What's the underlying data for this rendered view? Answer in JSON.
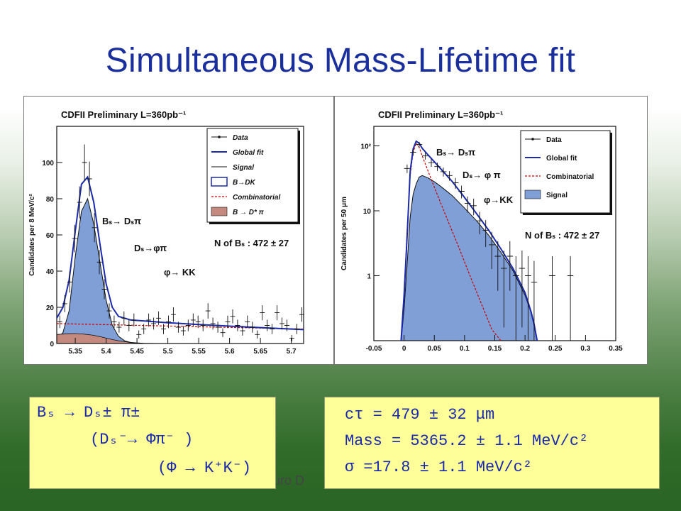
{
  "slide": {
    "title": "Simultaneous Mass-Lifetime fit",
    "footer_fragment": "auro D"
  },
  "chart_data": [
    {
      "type": "histogram",
      "title": "CDFII Preliminary L=360pb⁻¹",
      "xlabel": "",
      "ylabel": "Candidates per 8 MeV/c²",
      "xlim": [
        5.32,
        5.72
      ],
      "ylim": [
        0,
        120
      ],
      "xticks": [
        "5.35",
        "5.4",
        "5.45",
        "5.5",
        "5.55",
        "5.6",
        "5.65",
        "5.7"
      ],
      "yticks": [
        "0",
        "20",
        "40",
        "60",
        "80",
        "100"
      ],
      "legend": [
        "Data",
        "Global fit",
        "Signal",
        "B→DK",
        "Combinatorial",
        "B → D* π"
      ],
      "legend_position": "top-right",
      "annotations": [
        "Bₛ→ Dₛπ",
        "Dₛ→φπ",
        "φ→ KK",
        "N of Bₛ : 472 ± 27"
      ],
      "series": [
        {
          "name": "Data",
          "x": [
            5.325,
            5.333,
            5.341,
            5.349,
            5.357,
            5.365,
            5.373,
            5.381,
            5.389,
            5.397,
            5.405,
            5.413,
            5.421,
            5.429,
            5.437,
            5.445,
            5.453,
            5.461,
            5.469,
            5.477,
            5.485,
            5.493,
            5.501,
            5.509,
            5.517,
            5.525,
            5.533,
            5.541,
            5.549,
            5.557,
            5.565,
            5.573,
            5.581,
            5.589,
            5.597,
            5.605,
            5.613,
            5.621,
            5.629,
            5.637,
            5.645,
            5.653,
            5.661,
            5.669,
            5.677,
            5.685,
            5.693,
            5.701,
            5.709,
            5.717
          ],
          "y": [
            12,
            22,
            34,
            58,
            78,
            100,
            91,
            64,
            45,
            30,
            18,
            12,
            9,
            14,
            10,
            13,
            5,
            8,
            13,
            11,
            14,
            8,
            12,
            16,
            9,
            7,
            10,
            13,
            12,
            10,
            18,
            11,
            9,
            6,
            12,
            15,
            10,
            7,
            12,
            9,
            5,
            17,
            10,
            8,
            17,
            11,
            10,
            3,
            8,
            16
          ]
        },
        {
          "name": "Global fit",
          "x": [
            5.32,
            5.33,
            5.34,
            5.35,
            5.36,
            5.37,
            5.38,
            5.39,
            5.4,
            5.41,
            5.42,
            5.44,
            5.46,
            5.5,
            5.55,
            5.6,
            5.65,
            5.7,
            5.72
          ],
          "y": [
            14,
            20,
            35,
            62,
            88,
            92,
            78,
            55,
            33,
            20,
            15,
            13,
            12.5,
            11.5,
            10.5,
            9.6,
            8.8,
            8.0,
            7.7
          ]
        },
        {
          "name": "Signal",
          "x": [
            5.32,
            5.33,
            5.34,
            5.35,
            5.36,
            5.37,
            5.38,
            5.39,
            5.4,
            5.41,
            5.42,
            5.43,
            5.44,
            5.46,
            5.48
          ],
          "y": [
            2,
            6,
            18,
            48,
            73,
            80,
            66,
            45,
            24,
            10,
            4,
            1.5,
            0.6,
            0.1,
            0
          ]
        },
        {
          "name": "Combinatorial",
          "x": [
            5.32,
            5.72
          ],
          "y": [
            11,
            8
          ]
        },
        {
          "name": "B → D* π",
          "x": [
            5.32,
            5.33,
            5.34,
            5.35,
            5.36,
            5.37,
            5.38,
            5.39,
            5.4,
            5.41,
            5.42,
            5.43,
            5.44,
            5.45,
            5.47
          ],
          "y": [
            5,
            5.2,
            5.4,
            5.5,
            5.3,
            5,
            4.5,
            3.8,
            3,
            2.2,
            1.5,
            1,
            0.5,
            0.2,
            0
          ]
        }
      ]
    },
    {
      "type": "histogram",
      "title": "CDFII Preliminary L=360pb⁻¹",
      "xlabel": "",
      "ylabel": "Candidates per 50 μm",
      "xlim": [
        -0.05,
        0.35
      ],
      "ylim": [
        0.1,
        200
      ],
      "yscale": "log",
      "xticks": [
        "-0.05",
        "0",
        "0.05",
        "0.1",
        "0.15",
        "0.2",
        "0.25",
        "0.3",
        "0.35"
      ],
      "yticks": [
        "1",
        "10",
        "10²"
      ],
      "legend": [
        "Data",
        "Global fit",
        "Combinatorial",
        "Signal"
      ],
      "legend_position": "top-right",
      "annotations": [
        "Bₛ→ Dₛπ",
        "Dₛ→ φ π",
        "φ→KK",
        "N of Bₛ : 472 ± 27"
      ],
      "series": [
        {
          "name": "Data",
          "x": [
            0.005,
            0.015,
            0.025,
            0.035,
            0.045,
            0.055,
            0.065,
            0.075,
            0.085,
            0.095,
            0.105,
            0.115,
            0.125,
            0.135,
            0.145,
            0.155,
            0.165,
            0.175,
            0.185,
            0.195,
            0.205,
            0.215,
            0.245,
            0.275
          ],
          "y": [
            45,
            80,
            105,
            70,
            55,
            48,
            40,
            35,
            27,
            20,
            13,
            12,
            7,
            5,
            3,
            2,
            1.3,
            2,
            1,
            1.3,
            1,
            0.8,
            1,
            1
          ]
        },
        {
          "name": "Global fit",
          "x": [
            -0.005,
            0.0,
            0.005,
            0.01,
            0.015,
            0.02,
            0.025,
            0.03,
            0.04,
            0.05,
            0.06,
            0.08,
            0.1,
            0.12,
            0.14,
            0.16,
            0.18,
            0.2,
            0.21,
            0.215,
            0.22
          ],
          "y": [
            0.1,
            0.5,
            4,
            40,
            90,
            118,
            110,
            92,
            72,
            57,
            45,
            28,
            16,
            9,
            5,
            2.6,
            1.3,
            0.55,
            0.28,
            0.18,
            0.1
          ]
        },
        {
          "name": "Signal",
          "x": [
            -0.005,
            0.0,
            0.005,
            0.01,
            0.015,
            0.02,
            0.025,
            0.03,
            0.04,
            0.05,
            0.06,
            0.08,
            0.1,
            0.12,
            0.14,
            0.16,
            0.18,
            0.2,
            0.21,
            0.215,
            0.22
          ],
          "y": [
            0.1,
            0.3,
            1.5,
            8,
            18,
            26,
            33,
            35,
            32,
            28,
            24,
            17,
            11,
            7,
            4.2,
            2.3,
            1.2,
            0.5,
            0.27,
            0.17,
            0.1
          ]
        },
        {
          "name": "Combinatorial",
          "x": [
            -0.005,
            0.0,
            0.005,
            0.01,
            0.015,
            0.02,
            0.025,
            0.03,
            0.05,
            0.07,
            0.09,
            0.11,
            0.13,
            0.145,
            0.16
          ],
          "y": [
            0.1,
            0.5,
            5,
            35,
            80,
            110,
            95,
            70,
            23,
            8,
            2.8,
            0.95,
            0.33,
            0.15,
            0.08
          ]
        }
      ]
    }
  ],
  "boxes": {
    "left": [
      "Bₛ → Dₛ± π±",
      "(Dₛ⁻→ Φπ⁻ )",
      "(Φ → K⁺K⁻)"
    ],
    "right": [
      "cτ = 479 ± 32 μm",
      "Mass = 5365.2 ± 1.1 MeV/c²",
      "σ =17.8 ± 1.1 MeV/c²"
    ]
  },
  "colors": {
    "title": "#1a2e9c",
    "signal_fill": "#7f9fd6",
    "fit": "#1a2aa8",
    "combinatorial": "#cc0000",
    "bdstar_fill": "#c48a80",
    "box_bg": "#ffff99",
    "box_text": "#1a2aa8"
  }
}
